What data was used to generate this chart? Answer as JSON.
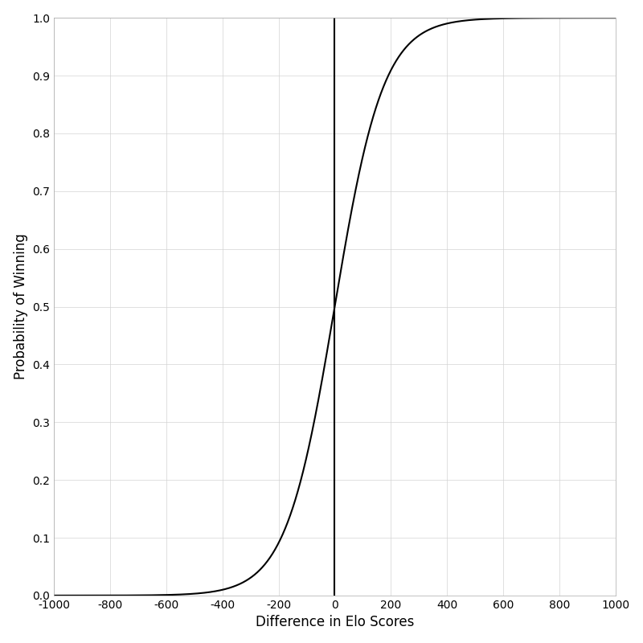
{
  "title": "",
  "xlabel": "Difference in Elo Scores",
  "ylabel": "Probability of Winning",
  "xlim": [
    -1000,
    1000
  ],
  "ylim": [
    0.0,
    1.0
  ],
  "xticks": [
    -1000,
    -800,
    -600,
    -400,
    -200,
    0,
    200,
    400,
    600,
    800,
    1000
  ],
  "yticks": [
    0.0,
    0.1,
    0.2,
    0.3,
    0.4,
    0.5,
    0.6,
    0.7,
    0.8,
    0.9,
    1.0
  ],
  "vline_x": 0,
  "curve_color": "#000000",
  "curve_linewidth": 1.5,
  "vline_color": "#000000",
  "vline_linewidth": 1.5,
  "background_color": "#FFFFFF",
  "panel_background": "#FFFFFF",
  "grid_color": "#D3D3D3",
  "grid_linewidth": 0.5,
  "elo_scale": 200,
  "xlabel_fontsize": 12,
  "ylabel_fontsize": 12,
  "tick_fontsize": 10,
  "spine_color": "#AAAAAA",
  "spine_linewidth": 0.5
}
